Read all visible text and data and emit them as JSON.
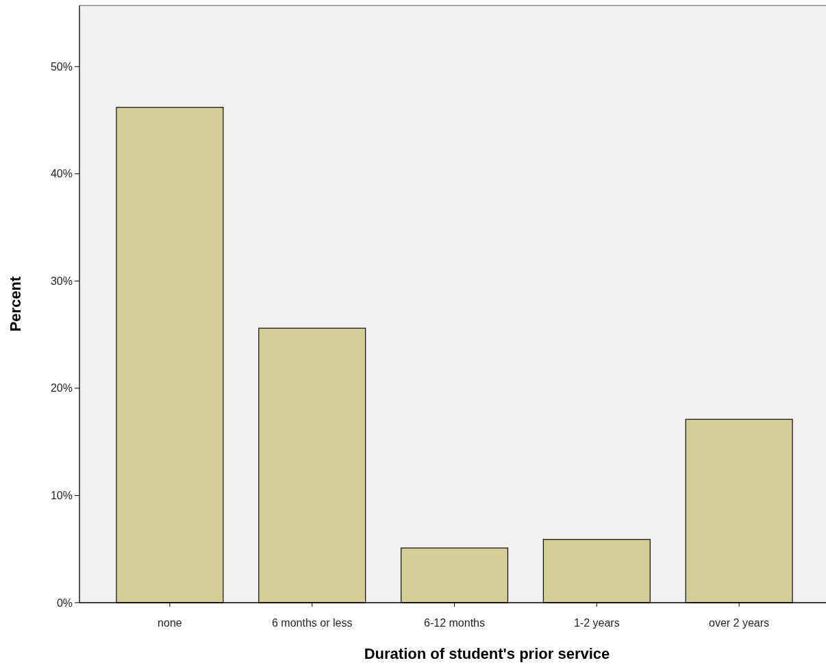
{
  "chart_data": {
    "type": "bar",
    "xlabel": "Duration of student's prior service",
    "ylabel": "Percent",
    "categories": [
      "none",
      "6 months or less",
      "6-12 months",
      "1-2 years",
      "over 2 years"
    ],
    "values": [
      46.2,
      25.6,
      5.1,
      5.9,
      17.1
    ],
    "color": "#d3ce97",
    "ylim": [
      0,
      55.7
    ],
    "yticks": [
      {
        "value": 0,
        "label": "0%"
      },
      {
        "value": 10,
        "label": "10%"
      },
      {
        "value": 20,
        "label": "20%"
      },
      {
        "value": 30,
        "label": "30%"
      },
      {
        "value": 40,
        "label": "40%"
      },
      {
        "value": 50,
        "label": "50%"
      }
    ],
    "grid": false
  }
}
